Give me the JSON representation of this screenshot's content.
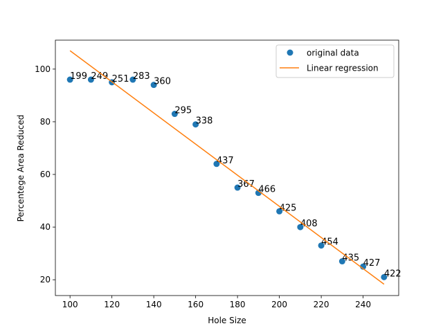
{
  "chart_data": {
    "type": "scatter",
    "title": "",
    "xlabel": "Hole Size",
    "ylabel": "Percentege Area Reduced",
    "xlim": [
      93,
      257
    ],
    "ylim": [
      14,
      111
    ],
    "x_ticks": [
      100,
      120,
      140,
      160,
      180,
      200,
      220,
      240
    ],
    "y_ticks": [
      20,
      40,
      60,
      80,
      100
    ],
    "grid": false,
    "legend_position": "upper right",
    "series": [
      {
        "name": "original data",
        "kind": "points",
        "color": "#1f77b4",
        "x": [
          100,
          110,
          120,
          130,
          140,
          150,
          160,
          170,
          180,
          190,
          200,
          210,
          220,
          230,
          240,
          250
        ],
        "y": [
          96,
          96,
          95,
          96,
          94,
          83,
          79,
          64,
          55,
          53,
          46,
          40,
          33,
          27,
          25,
          21
        ],
        "point_labels": [
          "199",
          "249",
          "251",
          "283",
          "360",
          "295",
          "338",
          "437",
          "367",
          "466",
          "425",
          "408",
          "454",
          "435",
          "427",
          "422"
        ]
      },
      {
        "name": "Linear regression",
        "kind": "line",
        "color": "#ff7f0e",
        "x": [
          100,
          250
        ],
        "y": [
          107,
          18.3
        ]
      }
    ]
  }
}
